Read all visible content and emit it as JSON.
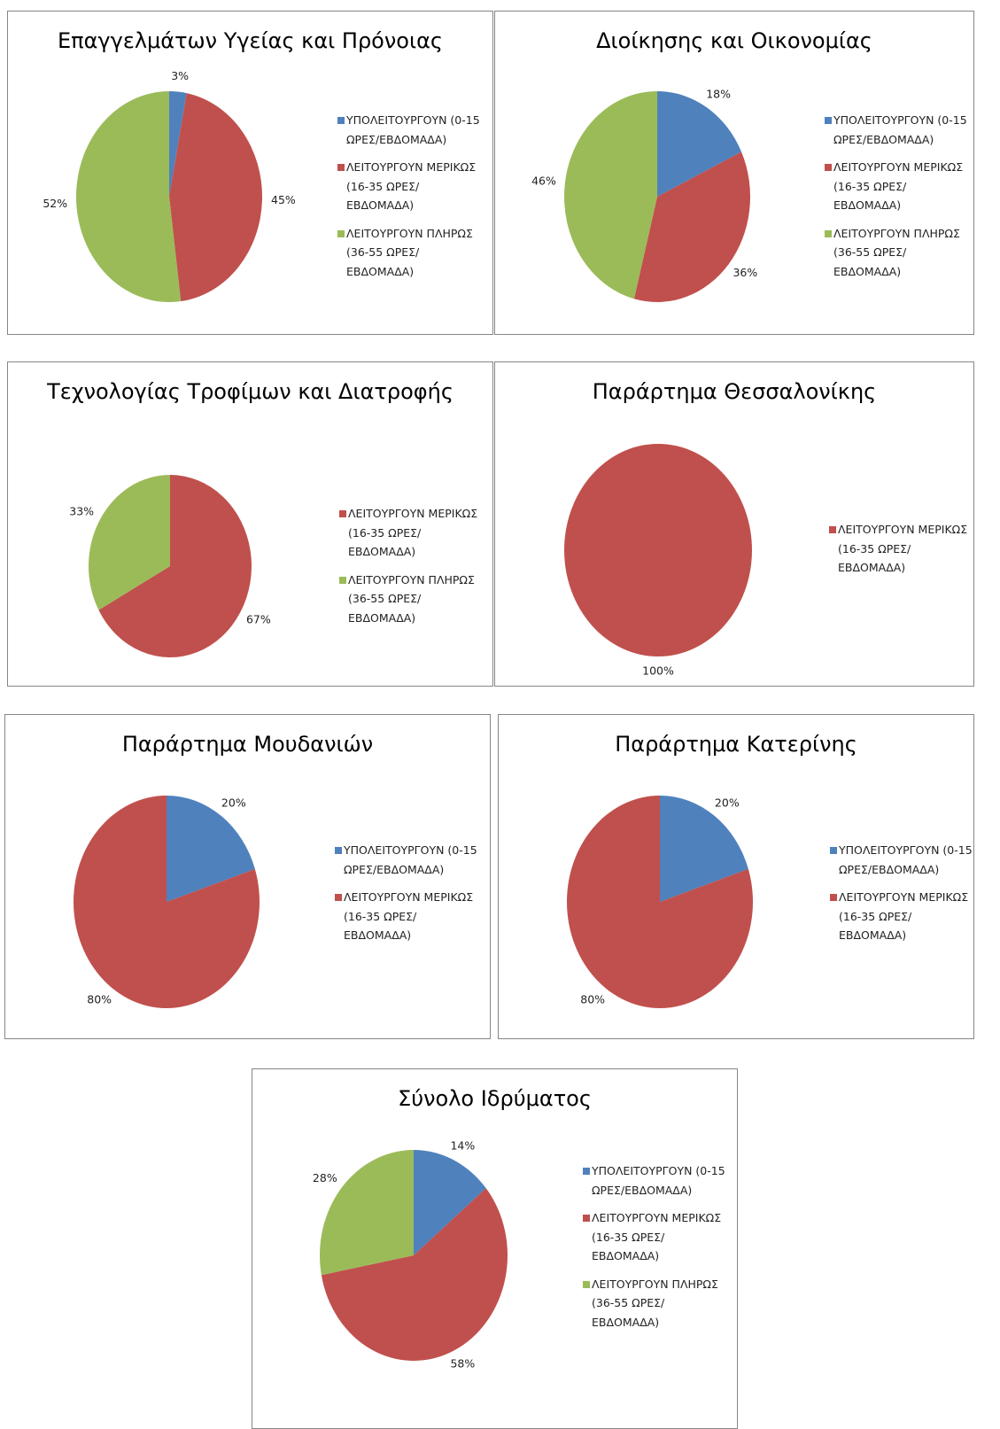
{
  "chart_data": [
    {
      "type": "pie",
      "title": "Επαγγελμάτων Υγείας και Πρόνοιας",
      "categories": [
        "ΥΠΟΛΕΙΤΟΥΡΓΟΥΝ (0-15 ΩΡΕΣ/ΕΒΔΟΜΑΔΑ)",
        "ΛΕΙΤΟΥΡΓΟΥΝ ΜΕΡΙΚΩΣ (16-35 ΩΡΕΣ/ ΕΒΔΟΜΑΔΑ)",
        "ΛΕΙΤΟΥΡΓΟΥΝ ΠΛΗΡΩΣ (36-55 ΩΡΕΣ/ ΕΒΔΟΜΑΔΑ)"
      ],
      "values": [
        3,
        45,
        52
      ],
      "value_labels": [
        "3%",
        "45%",
        "52%"
      ],
      "colors": [
        "#4f81bd",
        "#c0504d",
        "#9bbb59"
      ]
    },
    {
      "type": "pie",
      "title": "Διοίκησης και Οικονομίας",
      "categories": [
        "ΥΠΟΛΕΙΤΟΥΡΓΟΥΝ (0-15 ΩΡΕΣ/ΕΒΔΟΜΑΔΑ)",
        "ΛΕΙΤΟΥΡΓΟΥΝ ΜΕΡΙΚΩΣ (16-35 ΩΡΕΣ/ ΕΒΔΟΜΑΔΑ)",
        "ΛΕΙΤΟΥΡΓΟΥΝ ΠΛΗΡΩΣ (36-55 ΩΡΕΣ/ ΕΒΔΟΜΑΔΑ)"
      ],
      "values": [
        18,
        36,
        46
      ],
      "value_labels": [
        "18%",
        "36%",
        "46%"
      ],
      "colors": [
        "#4f81bd",
        "#c0504d",
        "#9bbb59"
      ]
    },
    {
      "type": "pie",
      "title": "Τεχνολογίας Τροφίμων και Διατροφής",
      "categories": [
        "ΛΕΙΤΟΥΡΓΟΥΝ ΜΕΡΙΚΩΣ (16-35 ΩΡΕΣ/ ΕΒΔΟΜΑΔΑ)",
        "ΛΕΙΤΟΥΡΓΟΥΝ ΠΛΗΡΩΣ (36-55 ΩΡΕΣ/ ΕΒΔΟΜΑΔΑ)"
      ],
      "values": [
        67,
        33
      ],
      "value_labels": [
        "67%",
        "33%"
      ],
      "colors": [
        "#c0504d",
        "#9bbb59"
      ]
    },
    {
      "type": "pie",
      "title": "Παράρτημα Θεσσαλονίκης",
      "categories": [
        "ΛΕΙΤΟΥΡΓΟΥΝ ΜΕΡΙΚΩΣ (16-35 ΩΡΕΣ/ ΕΒΔΟΜΑΔΑ)"
      ],
      "values": [
        100
      ],
      "value_labels": [
        "100%"
      ],
      "colors": [
        "#c0504d"
      ]
    },
    {
      "type": "pie",
      "title": "Παράρτημα Μουδανιών",
      "categories": [
        "ΥΠΟΛΕΙΤΟΥΡΓΟΥΝ (0-15 ΩΡΕΣ/ΕΒΔΟΜΑΔΑ)",
        "ΛΕΙΤΟΥΡΓΟΥΝ ΜΕΡΙΚΩΣ (16-35 ΩΡΕΣ/ ΕΒΔΟΜΑΔΑ)"
      ],
      "values": [
        20,
        80
      ],
      "value_labels": [
        "20%",
        "80%"
      ],
      "colors": [
        "#4f81bd",
        "#c0504d"
      ]
    },
    {
      "type": "pie",
      "title": "Παράρτημα Κατερίνης",
      "categories": [
        "ΥΠΟΛΕΙΤΟΥΡΓΟΥΝ (0-15 ΩΡΕΣ/ΕΒΔΟΜΑΔΑ)",
        "ΛΕΙΤΟΥΡΓΟΥΝ ΜΕΡΙΚΩΣ (16-35 ΩΡΕΣ/ ΕΒΔΟΜΑΔΑ)"
      ],
      "values": [
        20,
        80
      ],
      "value_labels": [
        "20%",
        "80%"
      ],
      "colors": [
        "#4f81bd",
        "#c0504d"
      ]
    },
    {
      "type": "pie",
      "title": "Σύνολο Ιδρύματος",
      "categories": [
        "ΥΠΟΛΕΙΤΟΥΡΓΟΥΝ (0-15 ΩΡΕΣ/ΕΒΔΟΜΑΔΑ)",
        "ΛΕΙΤΟΥΡΓΟΥΝ ΜΕΡΙΚΩΣ (16-35 ΩΡΕΣ/ ΕΒΔΟΜΑΔΑ)",
        "ΛΕΙΤΟΥΡΓΟΥΝ ΠΛΗΡΩΣ (36-55 ΩΡΕΣ/ ΕΒΔΟΜΑΔΑ)"
      ],
      "values": [
        14,
        58,
        28
      ],
      "value_labels": [
        "14%",
        "58%",
        "28%"
      ],
      "colors": [
        "#4f81bd",
        "#c0504d",
        "#9bbb59"
      ]
    }
  ]
}
